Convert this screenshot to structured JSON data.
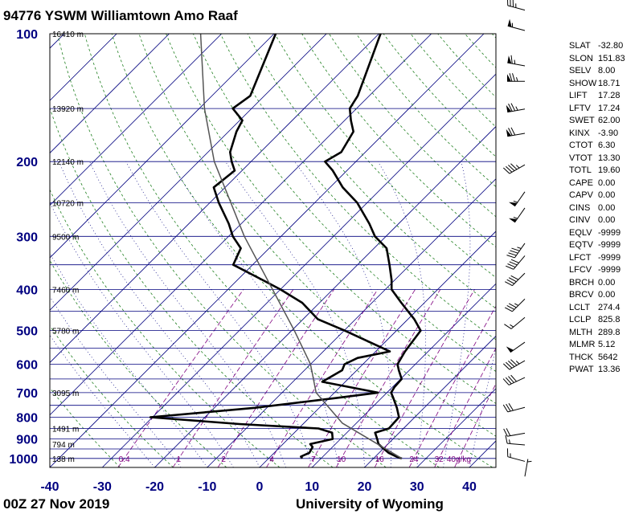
{
  "title": "94776 YSWM Williamtown Amo Raaf",
  "footer": {
    "time": "00Z 27 Nov 2019",
    "source": "University of Wyoming"
  },
  "colors": {
    "profile": "#000000",
    "isobar": "#00007f",
    "isotherm": "#00007f",
    "dry_adiabat": "#1f7f1f",
    "moist_adiabat": "#00007f",
    "mixing_ratio": "#7f007f",
    "axis_label": "#000080",
    "parcel": "#555555"
  },
  "chart_data": {
    "type": "line",
    "title": "94776 YSWM Williamtown Amo Raaf",
    "xlabel": "",
    "ylabel": "",
    "xlim": [
      -40,
      45
    ],
    "ylim": [
      1050,
      100
    ],
    "x_ticks": [
      -40,
      -30,
      -20,
      -10,
      0,
      10,
      20,
      30,
      40
    ],
    "y_ticks": [
      100,
      200,
      300,
      400,
      500,
      600,
      700,
      800,
      900,
      1000
    ],
    "heights": [
      {
        "p": 1000,
        "label": "138 m"
      },
      {
        "p": 925,
        "label": "794 m"
      },
      {
        "p": 850,
        "label": "1491 m"
      },
      {
        "p": 700,
        "label": "3095 m"
      },
      {
        "p": 500,
        "label": "5780 m"
      },
      {
        "p": 400,
        "label": "7460 m"
      },
      {
        "p": 300,
        "label": "9500 m"
      },
      {
        "p": 250,
        "label": "10720 m"
      },
      {
        "p": 200,
        "label": "12140 m"
      },
      {
        "p": 150,
        "label": "13920 m"
      },
      {
        "p": 100,
        "label": "16410 m"
      }
    ],
    "mixing_ratio_labels": [
      "0.4",
      "1",
      "2",
      "4",
      "7",
      "10",
      "16",
      "24",
      "32",
      "40g/kg"
    ],
    "mixing_ratio_values": [
      0.4,
      1,
      2,
      4,
      7,
      10,
      16,
      24,
      32,
      40
    ],
    "series": [
      {
        "name": "temperature",
        "points": [
          [
            1000,
            25.4
          ],
          [
            990,
            24
          ],
          [
            970,
            21.8
          ],
          [
            940,
            19.4
          ],
          [
            925,
            18.2
          ],
          [
            900,
            17
          ],
          [
            870,
            15.4
          ],
          [
            850,
            17.2
          ],
          [
            800,
            17
          ],
          [
            760,
            14.8
          ],
          [
            720,
            12.2
          ],
          [
            700,
            10.8
          ],
          [
            680,
            10.4
          ],
          [
            650,
            10.2
          ],
          [
            620,
            8
          ],
          [
            600,
            6.6
          ],
          [
            560,
            5.6
          ],
          [
            500,
            4.6
          ],
          [
            470,
            1.2
          ],
          [
            430,
            -4.4
          ],
          [
            400,
            -8.8
          ],
          [
            380,
            -10.6
          ],
          [
            350,
            -13.9
          ],
          [
            320,
            -17.6
          ],
          [
            300,
            -22.1
          ],
          [
            280,
            -25.6
          ],
          [
            250,
            -31.9
          ],
          [
            230,
            -37.6
          ],
          [
            210,
            -42.7
          ],
          [
            200,
            -45.9
          ],
          [
            190,
            -44.6
          ],
          [
            170,
            -46.2
          ],
          [
            160,
            -48.8
          ],
          [
            150,
            -51.3
          ],
          [
            140,
            -52.2
          ],
          [
            100,
            -59.7
          ]
        ]
      },
      {
        "name": "dewpoint",
        "points": [
          [
            1000,
            6.4
          ],
          [
            990,
            5.8
          ],
          [
            970,
            6.7
          ],
          [
            940,
            6.2
          ],
          [
            925,
            5.2
          ],
          [
            900,
            8.5
          ],
          [
            870,
            7.2
          ],
          [
            850,
            3.8
          ],
          [
            830,
            -12.1
          ],
          [
            800,
            -30.4
          ],
          [
            760,
            -12.3
          ],
          [
            720,
            1.5
          ],
          [
            700,
            8.3
          ],
          [
            660,
            -4.4
          ],
          [
            620,
            -2.8
          ],
          [
            600,
            -3.5
          ],
          [
            580,
            -2.2
          ],
          [
            560,
            2.7
          ],
          [
            500,
            -9.9
          ],
          [
            470,
            -17.2
          ],
          [
            430,
            -23.3
          ],
          [
            400,
            -30
          ],
          [
            380,
            -35.2
          ],
          [
            350,
            -43.7
          ],
          [
            320,
            -45.4
          ],
          [
            300,
            -49.2
          ],
          [
            280,
            -52.4
          ],
          [
            250,
            -58.3
          ],
          [
            230,
            -62.2
          ],
          [
            210,
            -61.4
          ],
          [
            200,
            -63.7
          ],
          [
            190,
            -65.8
          ],
          [
            170,
            -68.5
          ],
          [
            160,
            -69.5
          ],
          [
            150,
            -73.6
          ],
          [
            140,
            -72.7
          ],
          [
            100,
            -79.7
          ]
        ]
      },
      {
        "name": "parcel",
        "points": [
          [
            1000,
            25.4
          ],
          [
            825.8,
            7.3
          ],
          [
            700,
            -3.5
          ],
          [
            600,
            -10
          ],
          [
            500,
            -19.5
          ],
          [
            400,
            -31.5
          ],
          [
            300,
            -47
          ],
          [
            250,
            -56
          ],
          [
            200,
            -67
          ],
          [
            150,
            -79
          ],
          [
            100,
            -94
          ]
        ]
      }
    ],
    "wind_barbs": [
      {
        "p": 1000,
        "dir": 10,
        "kt": 5
      },
      {
        "p": 925,
        "dir": 285,
        "kt": 15
      },
      {
        "p": 850,
        "dir": 275,
        "kt": 15
      },
      {
        "p": 800,
        "dir": 260,
        "kt": 20
      },
      {
        "p": 700,
        "dir": 255,
        "kt": 30
      },
      {
        "p": 600,
        "dir": 245,
        "kt": 40
      },
      {
        "p": 550,
        "dir": 240,
        "kt": 45
      },
      {
        "p": 500,
        "dir": 235,
        "kt": 50
      },
      {
        "p": 440,
        "dir": 230,
        "kt": 15
      },
      {
        "p": 400,
        "dir": 225,
        "kt": 35
      },
      {
        "p": 350,
        "dir": 225,
        "kt": 40
      },
      {
        "p": 320,
        "dir": 220,
        "kt": 40
      },
      {
        "p": 300,
        "dir": 215,
        "kt": 45
      },
      {
        "p": 250,
        "dir": 215,
        "kt": 55
      },
      {
        "p": 230,
        "dir": 215,
        "kt": 55
      },
      {
        "p": 200,
        "dir": 240,
        "kt": 45
      },
      {
        "p": 170,
        "dir": 260,
        "kt": 70
      },
      {
        "p": 150,
        "dir": 260,
        "kt": 75
      },
      {
        "p": 130,
        "dir": 270,
        "kt": 75
      },
      {
        "p": 120,
        "dir": 280,
        "kt": 65
      },
      {
        "p": 100,
        "dir": 285,
        "kt": 55
      },
      {
        "p": 90,
        "dir": 285,
        "kt": 35
      }
    ]
  },
  "indices": [
    {
      "key": "SLAT",
      "value": "-32.80"
    },
    {
      "key": "SLON",
      "value": "151.83"
    },
    {
      "key": "SELV",
      "value": "8.00"
    },
    {
      "key": "SHOW",
      "value": "18.71"
    },
    {
      "key": "LIFT",
      "value": "17.28"
    },
    {
      "key": "LFTV",
      "value": "17.24"
    },
    {
      "key": "SWET",
      "value": "62.00"
    },
    {
      "key": "KINX",
      "value": "-3.90"
    },
    {
      "key": "CTOT",
      "value": "6.30"
    },
    {
      "key": "VTOT",
      "value": "13.30"
    },
    {
      "key": "TOTL",
      "value": "19.60"
    },
    {
      "key": "CAPE",
      "value": "0.00"
    },
    {
      "key": "CAPV",
      "value": "0.00"
    },
    {
      "key": "CINS",
      "value": "0.00"
    },
    {
      "key": "CINV",
      "value": "0.00"
    },
    {
      "key": "EQLV",
      "value": "-9999"
    },
    {
      "key": "EQTV",
      "value": "-9999"
    },
    {
      "key": "LFCT",
      "value": "-9999"
    },
    {
      "key": "LFCV",
      "value": "-9999"
    },
    {
      "key": "BRCH",
      "value": "0.00"
    },
    {
      "key": "BRCV",
      "value": "0.00"
    },
    {
      "key": "LCLT",
      "value": "274.4"
    },
    {
      "key": "LCLP",
      "value": "825.8"
    },
    {
      "key": "MLTH",
      "value": "289.8"
    },
    {
      "key": "MLMR",
      "value": "5.12"
    },
    {
      "key": "THCK",
      "value": "5642"
    },
    {
      "key": "PWAT",
      "value": "13.36"
    }
  ]
}
